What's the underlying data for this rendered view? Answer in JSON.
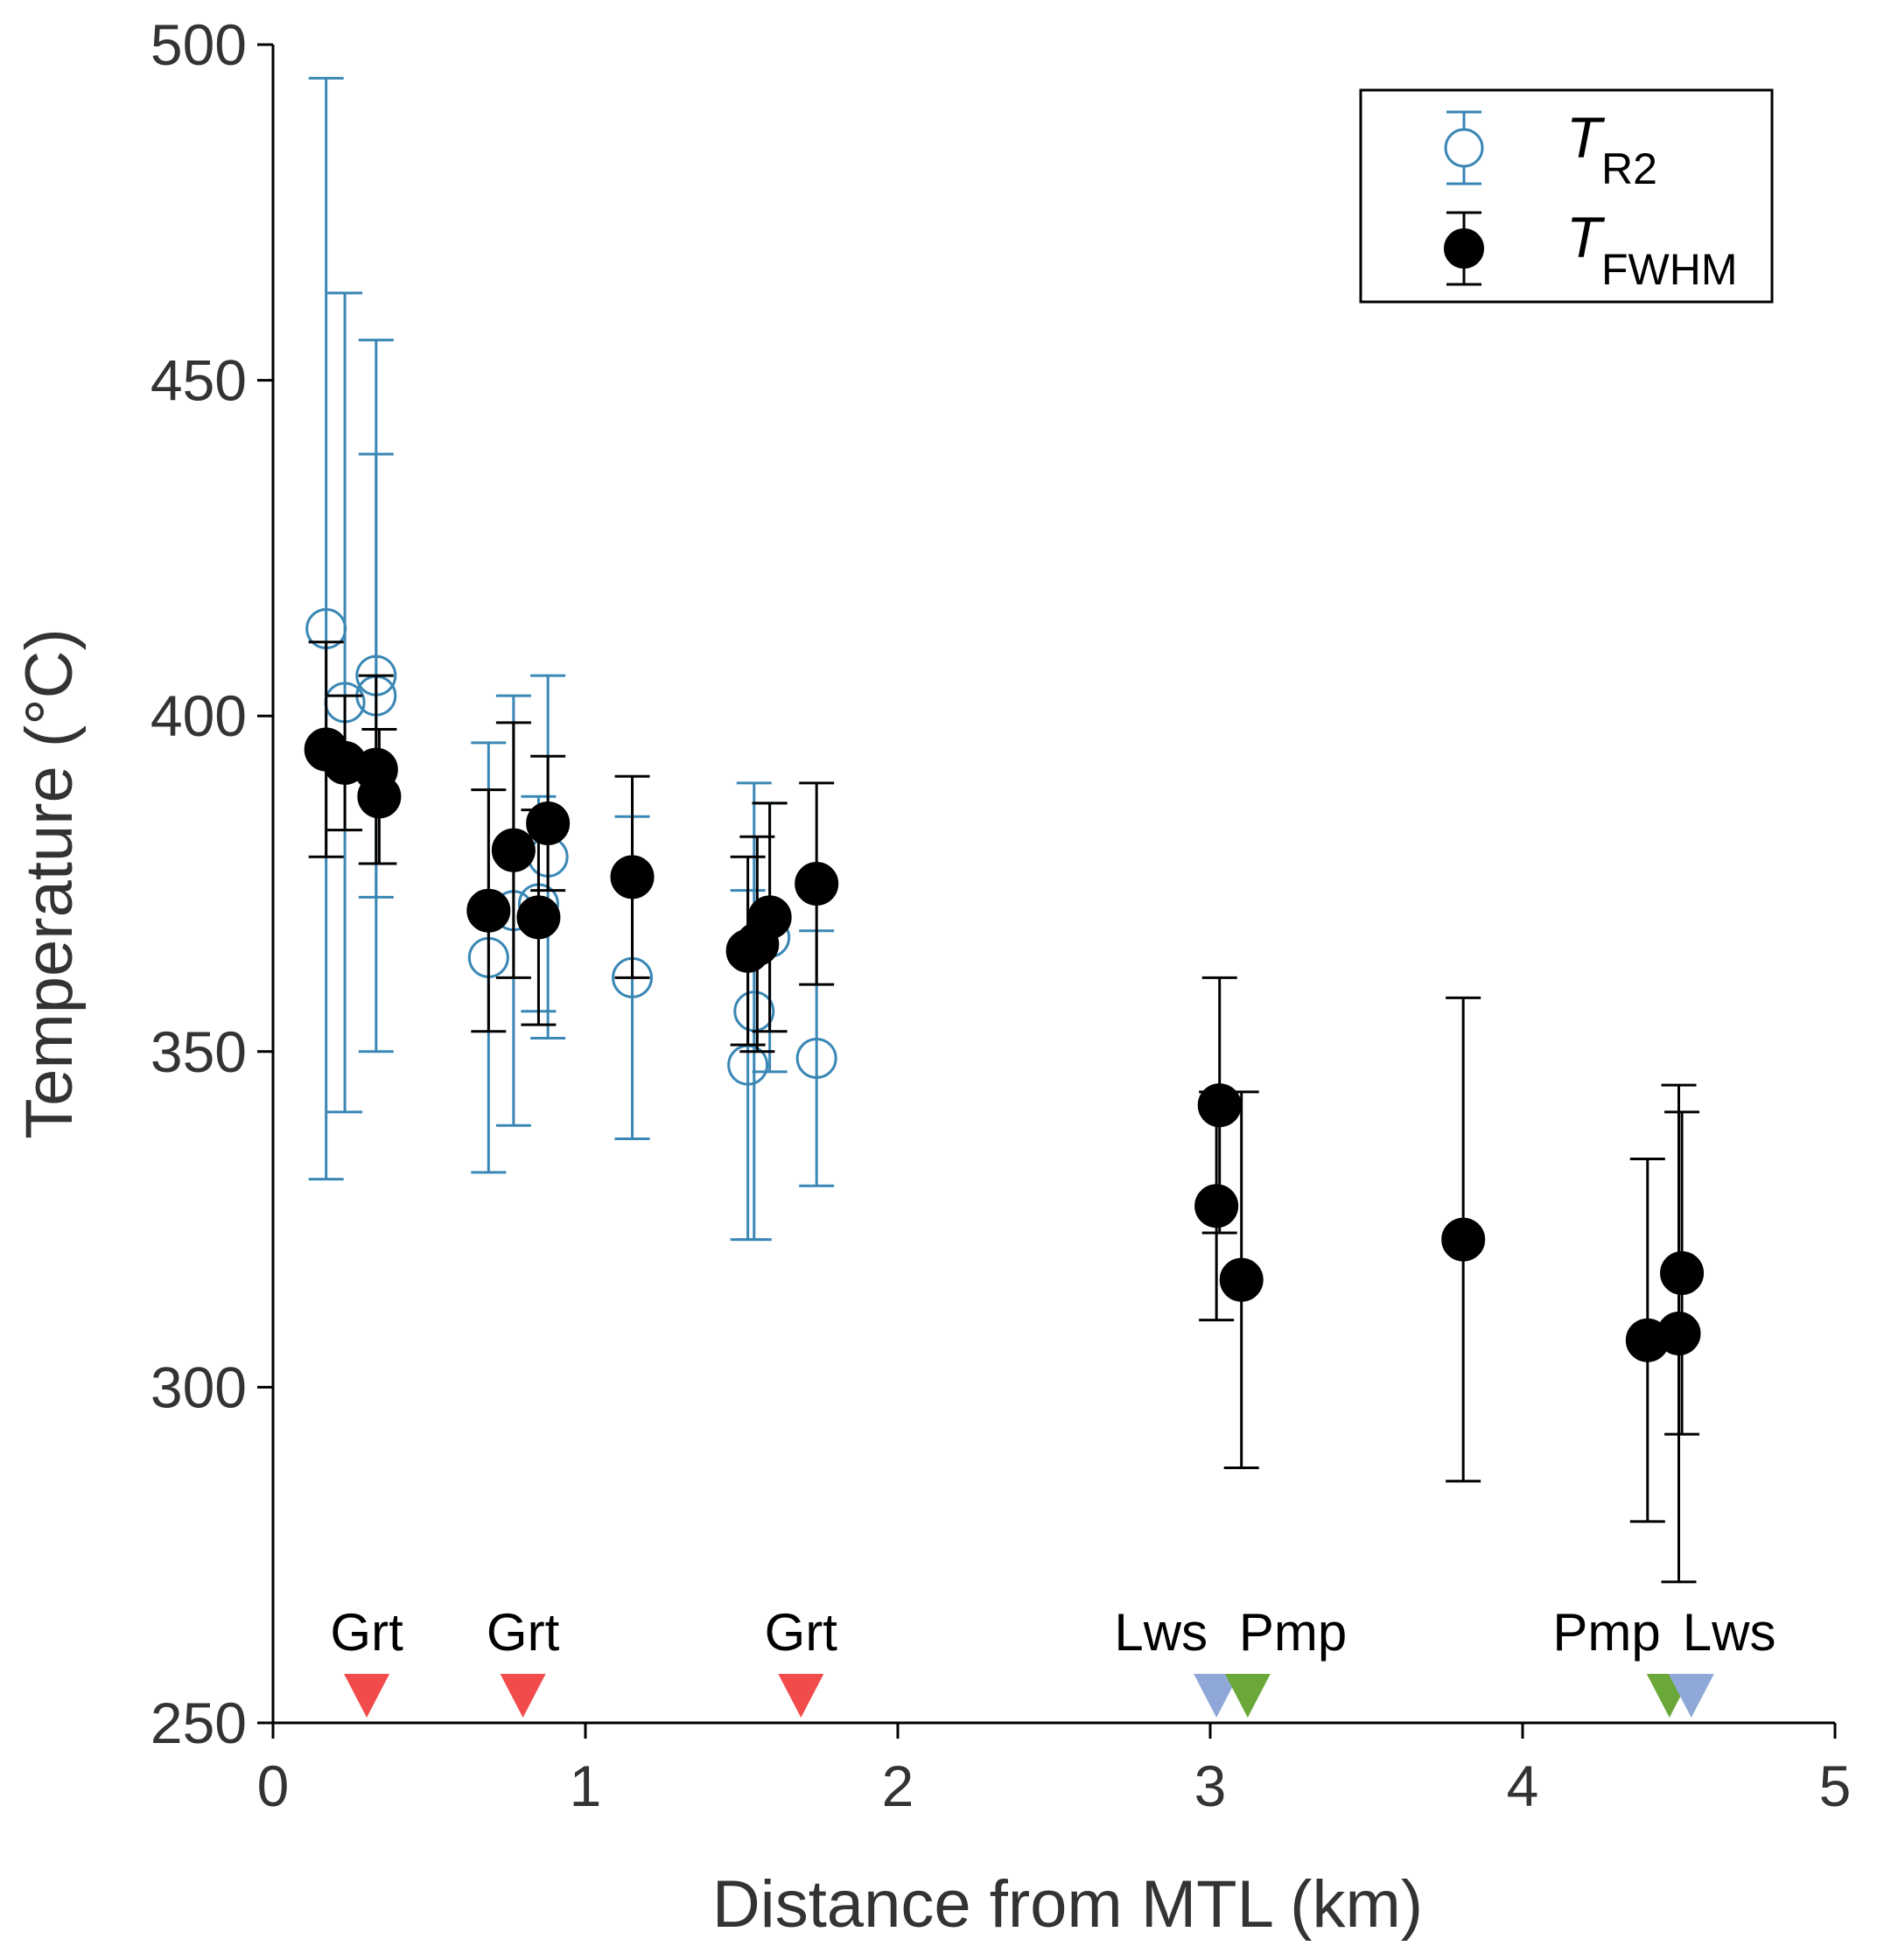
{
  "chart_data": {
    "type": "scatter",
    "title": "",
    "xlabel": "Distance from MTL (km)",
    "ylabel": "Temperature (°C)",
    "xlim": [
      0,
      5
    ],
    "ylim": [
      250,
      500
    ],
    "x_ticks": [
      0,
      1,
      2,
      3,
      4,
      5
    ],
    "y_ticks": [
      250,
      300,
      350,
      400,
      450,
      500
    ],
    "grid": false,
    "legend_position": "top-right",
    "series": [
      {
        "name": "T_R2",
        "legend_main": "T",
        "legend_sub": "R2",
        "marker": "open-circle",
        "color": "#3A87B5",
        "points": [
          {
            "x": 0.17,
            "y": 413,
            "low": 331,
            "high": 495
          },
          {
            "x": 0.23,
            "y": 402,
            "low": 341,
            "high": 463
          },
          {
            "x": 0.33,
            "y": 406,
            "low": 373,
            "high": 439
          },
          {
            "x": 0.33,
            "y": 403,
            "low": 350,
            "high": 456
          },
          {
            "x": 0.69,
            "y": 364,
            "low": 332,
            "high": 396
          },
          {
            "x": 0.77,
            "y": 371,
            "low": 339,
            "high": 403
          },
          {
            "x": 0.85,
            "y": 372,
            "low": 356,
            "high": 388
          },
          {
            "x": 0.88,
            "y": 379,
            "low": 352,
            "high": 406
          },
          {
            "x": 1.15,
            "y": 361,
            "low": 337,
            "high": 385
          },
          {
            "x": 1.52,
            "y": 348,
            "low": 322,
            "high": 374
          },
          {
            "x": 1.54,
            "y": 356,
            "low": 322,
            "high": 390
          },
          {
            "x": 1.59,
            "y": 367,
            "low": 347,
            "high": 387
          },
          {
            "x": 1.74,
            "y": 349,
            "low": 330,
            "high": 368
          }
        ]
      },
      {
        "name": "T_FWHM",
        "legend_main": "T",
        "legend_sub": "FWHM",
        "marker": "filled-circle",
        "color": "#000000",
        "points": [
          {
            "x": 0.17,
            "y": 395,
            "low": 379,
            "high": 411
          },
          {
            "x": 0.23,
            "y": 393,
            "low": 383,
            "high": 403
          },
          {
            "x": 0.33,
            "y": 392,
            "low": 378,
            "high": 406
          },
          {
            "x": 0.34,
            "y": 388,
            "low": 378,
            "high": 398
          },
          {
            "x": 0.69,
            "y": 371,
            "low": 353,
            "high": 389
          },
          {
            "x": 0.77,
            "y": 380,
            "low": 361,
            "high": 399
          },
          {
            "x": 0.85,
            "y": 370,
            "low": 354,
            "high": 386
          },
          {
            "x": 0.88,
            "y": 384,
            "low": 374,
            "high": 394
          },
          {
            "x": 1.15,
            "y": 376,
            "low": 361,
            "high": 391
          },
          {
            "x": 1.52,
            "y": 365,
            "low": 351,
            "high": 379
          },
          {
            "x": 1.55,
            "y": 366,
            "low": 350,
            "high": 382
          },
          {
            "x": 1.59,
            "y": 370,
            "low": 353,
            "high": 387
          },
          {
            "x": 1.74,
            "y": 375,
            "low": 360,
            "high": 390
          },
          {
            "x": 3.03,
            "y": 342,
            "low": 323,
            "high": 361
          },
          {
            "x": 3.02,
            "y": 327,
            "low": 310,
            "high": 344
          },
          {
            "x": 3.1,
            "y": 316,
            "low": 288,
            "high": 344
          },
          {
            "x": 3.81,
            "y": 322,
            "low": 286,
            "high": 358
          },
          {
            "x": 4.4,
            "y": 307,
            "low": 280,
            "high": 334
          },
          {
            "x": 4.5,
            "y": 308,
            "low": 271,
            "high": 345
          },
          {
            "x": 4.51,
            "y": 317,
            "low": 293,
            "high": 341
          }
        ]
      }
    ],
    "mineral_markers": [
      {
        "label": "Grt",
        "x": 0.3,
        "color": "#F24B4B"
      },
      {
        "label": "Grt",
        "x": 0.8,
        "color": "#F24B4B"
      },
      {
        "label": "Grt",
        "x": 1.69,
        "color": "#F24B4B"
      },
      {
        "label": "Lws",
        "x": 3.02,
        "color": "#8FA8D8"
      },
      {
        "label": "Pmp",
        "x": 3.12,
        "color": "#6BA83A"
      },
      {
        "label": "Pmp",
        "x": 4.47,
        "color": "#6BA83A"
      },
      {
        "label": "Lws",
        "x": 4.54,
        "color": "#8FA8D8"
      }
    ]
  }
}
